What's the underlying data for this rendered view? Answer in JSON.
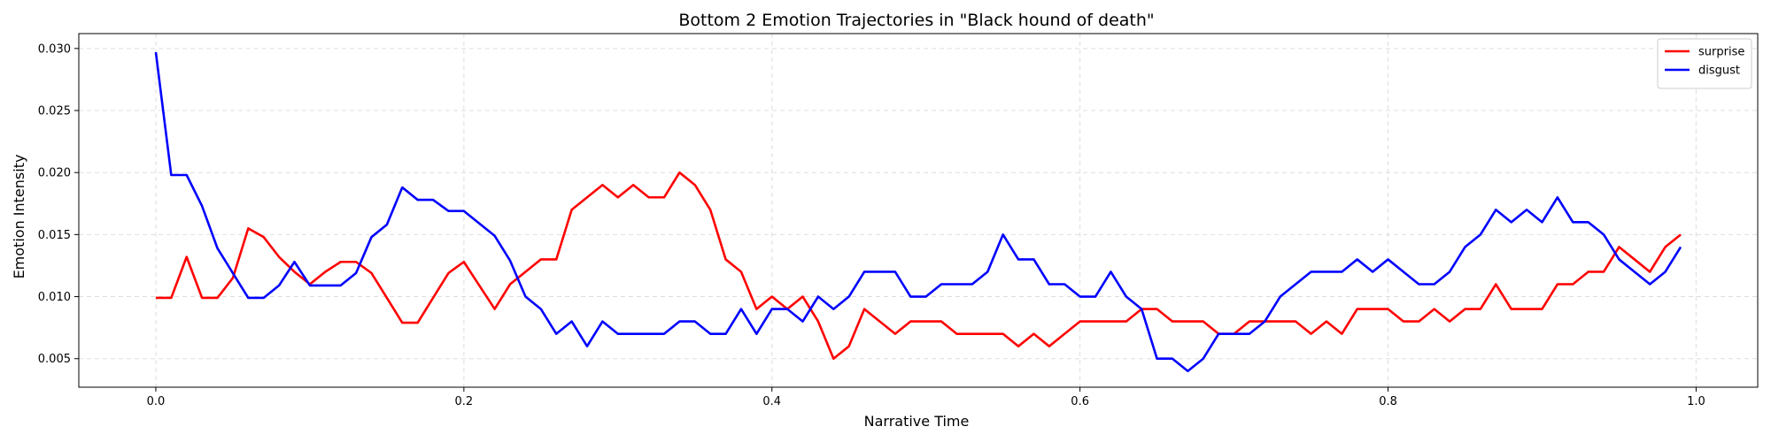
{
  "chart_data": {
    "type": "line",
    "title": "Bottom 2 Emotion Trajectories in \"Black hound of death\"",
    "xlabel": "Narrative Time",
    "ylabel": "Emotion Intensity",
    "xlim": [
      -0.05,
      1.04
    ],
    "ylim": [
      0.0027,
      0.0312
    ],
    "xticks": [
      0.0,
      0.2,
      0.4,
      0.6,
      0.8,
      1.0
    ],
    "xtick_labels": [
      "0.0",
      "0.2",
      "0.4",
      "0.6",
      "0.8",
      "1.0"
    ],
    "yticks": [
      0.005,
      0.01,
      0.015,
      0.02,
      0.025,
      0.03
    ],
    "ytick_labels": [
      "0.005",
      "0.010",
      "0.015",
      "0.020",
      "0.025",
      "0.030"
    ],
    "grid": true,
    "legend_position": "top-right",
    "series": [
      {
        "name": "surprise",
        "color": "#ff0000",
        "values": [
          0.0099,
          0.0099,
          0.0132,
          0.0099,
          0.0099,
          0.0115,
          0.0155,
          0.0148,
          0.0132,
          0.012,
          0.011,
          0.012,
          0.0128,
          0.0128,
          0.0119,
          0.0099,
          0.0079,
          0.0079,
          0.0099,
          0.0119,
          0.0128,
          0.0109,
          0.009,
          0.011,
          0.012,
          0.013,
          0.013,
          0.017,
          0.018,
          0.019,
          0.018,
          0.019,
          0.018,
          0.018,
          0.02,
          0.019,
          0.017,
          0.013,
          0.012,
          0.009,
          0.01,
          0.009,
          0.01,
          0.008,
          0.005,
          0.006,
          0.009,
          0.008,
          0.007,
          0.008,
          0.008,
          0.008,
          0.007,
          0.007,
          0.007,
          0.007,
          0.006,
          0.007,
          0.006,
          0.007,
          0.008,
          0.008,
          0.008,
          0.008,
          0.009,
          0.009,
          0.008,
          0.008,
          0.008,
          0.007,
          0.007,
          0.008,
          0.008,
          0.008,
          0.008,
          0.007,
          0.008,
          0.007,
          0.009,
          0.009,
          0.009,
          0.008,
          0.008,
          0.009,
          0.008,
          0.009,
          0.009,
          0.011,
          0.009,
          0.009,
          0.009,
          0.011,
          0.011,
          0.012,
          0.012,
          0.014,
          0.013,
          0.012,
          0.014,
          0.015
        ]
      },
      {
        "name": "disgust",
        "color": "#0000ff",
        "values": [
          0.0297,
          0.0198,
          0.0198,
          0.0173,
          0.0139,
          0.0119,
          0.0099,
          0.0099,
          0.0109,
          0.0128,
          0.0109,
          0.0109,
          0.0109,
          0.0119,
          0.0148,
          0.0158,
          0.0188,
          0.0178,
          0.0178,
          0.0169,
          0.0169,
          0.0159,
          0.0149,
          0.0129,
          0.01,
          0.009,
          0.007,
          0.008,
          0.006,
          0.008,
          0.007,
          0.007,
          0.007,
          0.007,
          0.008,
          0.008,
          0.007,
          0.007,
          0.009,
          0.007,
          0.009,
          0.009,
          0.008,
          0.01,
          0.009,
          0.01,
          0.012,
          0.012,
          0.012,
          0.01,
          0.01,
          0.011,
          0.011,
          0.011,
          0.012,
          0.015,
          0.013,
          0.013,
          0.011,
          0.011,
          0.01,
          0.01,
          0.012,
          0.01,
          0.009,
          0.005,
          0.005,
          0.004,
          0.005,
          0.007,
          0.007,
          0.007,
          0.008,
          0.01,
          0.011,
          0.012,
          0.012,
          0.012,
          0.013,
          0.012,
          0.013,
          0.012,
          0.011,
          0.011,
          0.012,
          0.014,
          0.015,
          0.017,
          0.016,
          0.017,
          0.016,
          0.018,
          0.016,
          0.016,
          0.015,
          0.013,
          0.012,
          0.011,
          0.012,
          0.014
        ]
      }
    ]
  }
}
